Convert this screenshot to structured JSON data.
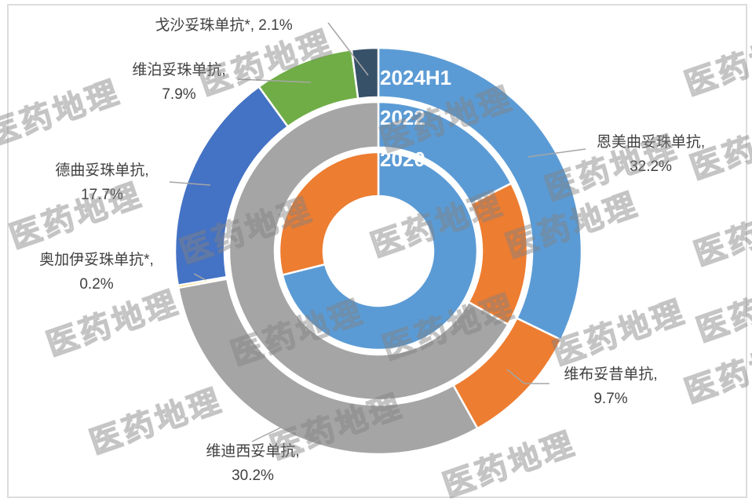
{
  "watermark": {
    "text": "医药地理"
  },
  "chart_data": {
    "type": "donut",
    "title": "",
    "legend": "none",
    "label_style": "outside callouts with leader lines; ring year labels inside rings at 12 o'clock",
    "rings": [
      {
        "label": "2024H1",
        "position": "outer",
        "segments": [
          {
            "id": "enmeiqu",
            "name": "恩美曲妥珠单抗",
            "value": 32.2,
            "color": "#5B9BD5"
          },
          {
            "id": "weibu",
            "name": "维布妥昔单抗",
            "value": 9.7,
            "color": "#ED7D31"
          },
          {
            "id": "weidixi",
            "name": "维迪西妥单抗",
            "value": 30.2,
            "color": "#A5A5A5"
          },
          {
            "id": "aojiayi",
            "name": "奥加伊妥珠单抗*",
            "value": 0.2,
            "color": "#FFC000"
          },
          {
            "id": "dequ",
            "name": "德曲妥珠单抗",
            "value": 17.7,
            "color": "#4472C4"
          },
          {
            "id": "weipo",
            "name": "维泊妥珠单抗",
            "value": 7.9,
            "color": "#70AD47"
          },
          {
            "id": "gesha",
            "name": "戈沙妥珠单抗*",
            "value": 2.1,
            "color": "#375169"
          }
        ]
      },
      {
        "label": "2022",
        "position": "middle",
        "values_estimated_from_arcs": true,
        "segments": [
          {
            "id": "enmeiqu",
            "name": "恩美曲妥珠单抗",
            "value": 17.5,
            "color": "#5B9BD5"
          },
          {
            "id": "weibu",
            "name": "维布妥昔单抗",
            "value": 15.7,
            "color": "#ED7D31"
          },
          {
            "id": "weidixi",
            "name": "维迪西妥单抗",
            "value": 66.8,
            "color": "#A5A5A5"
          }
        ]
      },
      {
        "label": "2020",
        "position": "inner",
        "values_estimated_from_arcs": true,
        "segments": [
          {
            "id": "enmeiqu",
            "name": "恩美曲妥珠单抗",
            "value": 71.1,
            "color": "#5B9BD5"
          },
          {
            "id": "weibu",
            "name": "维布妥昔单抗",
            "value": 28.9,
            "color": "#ED7D31"
          }
        ]
      }
    ]
  },
  "ring_labels": {
    "outer": "2024H1",
    "middle": "2022",
    "inner": "2020"
  },
  "callouts": {
    "gesha": {
      "line1": "戈沙妥珠单抗*, 2.1%",
      "line2": ""
    },
    "weipo": {
      "line1": "维泊妥珠单抗,",
      "line2": "7.9%"
    },
    "enmeiqu": {
      "line1": "恩美曲妥珠单抗,",
      "line2": "32.2%"
    },
    "weibu": {
      "line1": "维布妥昔单抗,",
      "line2": "9.7%"
    },
    "weidixi": {
      "line1": "维迪西妥单抗,",
      "line2": "30.2%"
    },
    "aojiayi": {
      "line1": "奥加伊妥珠单抗*,",
      "line2": "0.2%"
    },
    "dequ": {
      "line1": "德曲妥珠单抗,",
      "line2": "17.7%"
    }
  },
  "colors": {
    "callout_text": "#404040",
    "ring_label_text": "#FFFFFF",
    "leader_line": "#A6A6A6",
    "frame_border": "#DCDCDC",
    "background": "#FFFFFF"
  }
}
